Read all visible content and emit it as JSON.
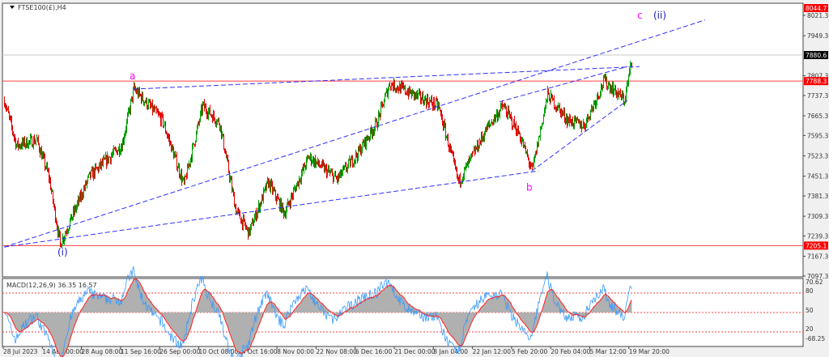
{
  "chart_data": {
    "type": "candlestick",
    "title": "FTSE100(£),H4",
    "ylim": [
      7097.3,
      8044.7
    ],
    "y_ticks": [
      8021.3,
      7949.3,
      7807.3,
      7737.3,
      7665.3,
      7595.3,
      7523.3,
      7451.3,
      7381.3,
      7309.3,
      7239.3,
      7167.3,
      7097.3
    ],
    "x_ticks": [
      "28 Jul 2023",
      "14 Aug 00:00",
      "28 Aug 08:00",
      "11 Sep 16:00",
      "26 Sep 00:00",
      "10 Oct 08:00",
      "24 Oct 16:00",
      "8 Nov 00:00",
      "22 Nov 08:00",
      "6 Dec 16:00",
      "21 Dec 00:00",
      "8 Jan 04:00",
      "22 Jan 12:00",
      "5 Feb 20:00",
      "20 Feb 04:00",
      "5 Mar 12:00",
      "19 Mar 20:00"
    ],
    "price_labels": [
      {
        "value": "8044.7",
        "color": "#ff0000"
      },
      {
        "value": "7880.6",
        "color": "#000000"
      },
      {
        "value": "7788.3",
        "color": "#ff0000"
      },
      {
        "value": "7205.1",
        "color": "#ff0000"
      }
    ],
    "horizontal_lines": [
      7788.3,
      7205.1
    ],
    "swings": [
      [
        0,
        7720
      ],
      [
        15,
        7560
      ],
      [
        40,
        7580
      ],
      [
        55,
        7450
      ],
      [
        69,
        7210
      ],
      [
        105,
        7450
      ],
      [
        145,
        7560
      ],
      [
        160,
        7760
      ],
      [
        195,
        7650
      ],
      [
        222,
        7420
      ],
      [
        245,
        7700
      ],
      [
        266,
        7640
      ],
      [
        286,
        7330
      ],
      [
        302,
        7250
      ],
      [
        326,
        7430
      ],
      [
        346,
        7320
      ],
      [
        376,
        7520
      ],
      [
        411,
        7440
      ],
      [
        436,
        7530
      ],
      [
        460,
        7640
      ],
      [
        476,
        7780
      ],
      [
        506,
        7740
      ],
      [
        536,
        7700
      ],
      [
        561,
        7430
      ],
      [
        596,
        7620
      ],
      [
        616,
        7700
      ],
      [
        636,
        7600
      ],
      [
        652,
        7470
      ],
      [
        671,
        7740
      ],
      [
        696,
        7650
      ],
      [
        716,
        7630
      ],
      [
        741,
        7790
      ],
      [
        766,
        7720
      ],
      [
        776,
        7880
      ]
    ],
    "wave_labels": [
      {
        "text": "(i)",
        "color": "#2020c0",
        "bar": 69,
        "price": 7170
      },
      {
        "text": "a",
        "color": "#ff00ff",
        "bar": 158,
        "price": 7795
      },
      {
        "text": "b",
        "color": "#ff00ff",
        "bar": 648,
        "price": 7400
      },
      {
        "text": "c",
        "color": "#ff00ff",
        "bar": 785,
        "price": 8010
      },
      {
        "text": "(ii)",
        "color": "#2020c0",
        "bar": 805,
        "price": 8010
      }
    ],
    "indicator": {
      "label": "MACD(12,26,9) 36.35 16.57",
      "ticks": [
        "70.62",
        "80",
        "50",
        "00",
        "20",
        "-68.25"
      ],
      "levels": [
        80,
        50,
        20
      ]
    },
    "colors": {
      "up": "#00a000",
      "down": "#e00000",
      "trend": "#3030ff",
      "macd": "#3399ff",
      "signal": "#ff2020",
      "hist": "#b0b0b0"
    }
  }
}
